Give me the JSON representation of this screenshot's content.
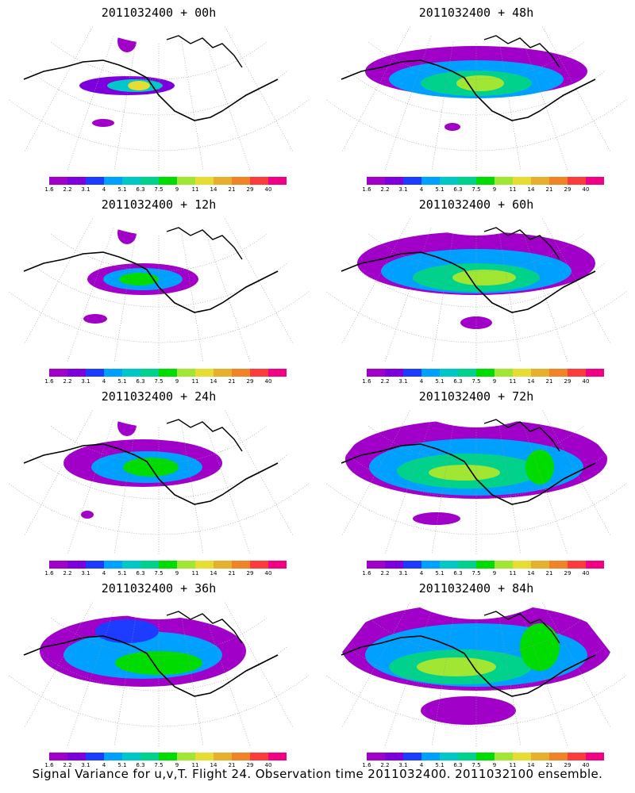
{
  "panels": [
    {
      "title": "2011032400 + 00h"
    },
    {
      "title": "2011032400 + 48h"
    },
    {
      "title": "2011032400 + 12h"
    },
    {
      "title": "2011032400 + 60h"
    },
    {
      "title": "2011032400 + 24h"
    },
    {
      "title": "2011032400 + 72h"
    },
    {
      "title": "2011032400 + 36h"
    },
    {
      "title": "2011032400 + 84h"
    }
  ],
  "colorbar": {
    "labels": [
      "1.6",
      "2.2",
      "3.1",
      "4",
      "5.1",
      "6.3",
      "7.5",
      "9",
      "11",
      "14",
      "21",
      "29",
      "40"
    ],
    "colors": [
      "#a000c8",
      "#7d00dc",
      "#1e3cff",
      "#00a0ff",
      "#00c8c8",
      "#00d28c",
      "#00dc00",
      "#a0e632",
      "#e6dc32",
      "#e6af2d",
      "#f08228",
      "#fa3c3c",
      "#f00082"
    ]
  },
  "footer": {
    "caption": "Signal Variance for u,v,T. Flight 24. Observation time 2011032400. 2011032100 ensemble."
  }
}
